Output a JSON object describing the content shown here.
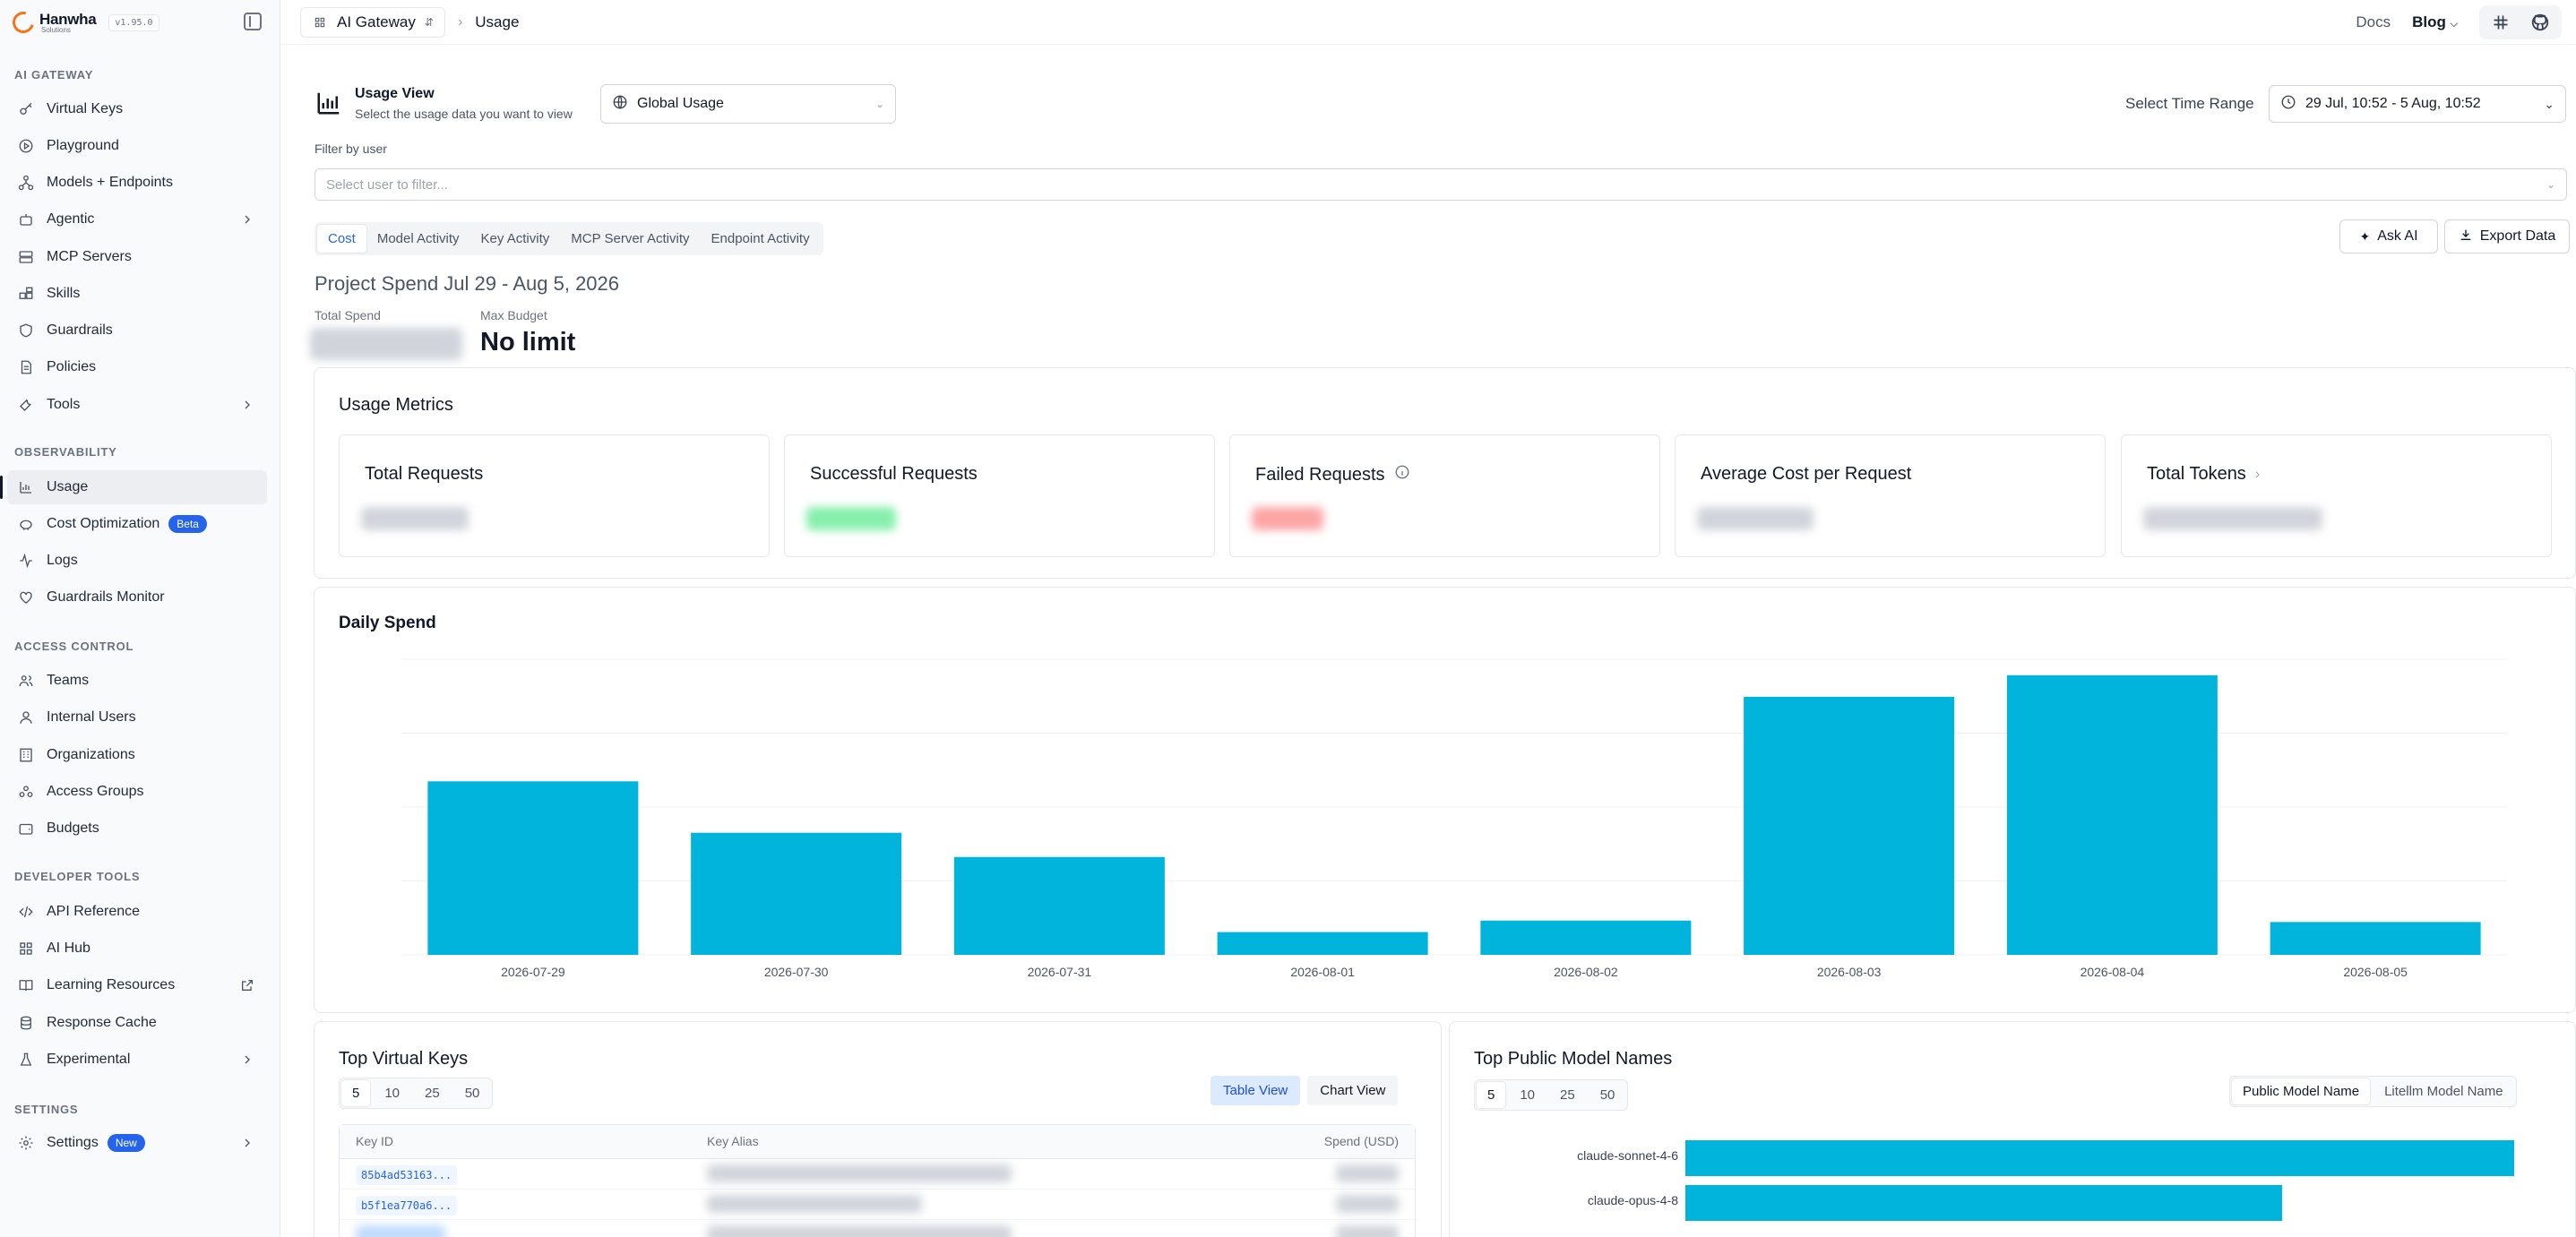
{
  "app": {
    "logo_name": "Hanwha",
    "logo_sub": "Solutions",
    "version": "v1.95.0"
  },
  "colors": {
    "accent": "#00b4db",
    "brand": "#f97316",
    "primary_blue": "#2563eb"
  },
  "sidebar": {
    "sections": [
      {
        "title": "AI GATEWAY"
      },
      {
        "title": "OBSERVABILITY"
      },
      {
        "title": "ACCESS CONTROL"
      },
      {
        "title": "DEVELOPER TOOLS"
      },
      {
        "title": "SETTINGS"
      }
    ],
    "items": [
      {
        "label": "Virtual Keys",
        "icon": "key-icon"
      },
      {
        "label": "Playground",
        "icon": "play-icon"
      },
      {
        "label": "Models + Endpoints",
        "icon": "network-icon"
      },
      {
        "label": "Agentic",
        "icon": "robot-icon"
      },
      {
        "label": "MCP Servers",
        "icon": "server-icon"
      },
      {
        "label": "Skills",
        "icon": "blocks-icon"
      },
      {
        "label": "Guardrails",
        "icon": "shield-icon"
      },
      {
        "label": "Policies",
        "icon": "document-icon"
      },
      {
        "label": "Tools",
        "icon": "wrench-icon"
      },
      {
        "label": "Usage",
        "icon": "bar-chart-icon"
      },
      {
        "label": "Cost Optimization",
        "icon": "piggy-icon",
        "badge": "Beta"
      },
      {
        "label": "Logs",
        "icon": "activity-icon"
      },
      {
        "label": "Guardrails Monitor",
        "icon": "heart-icon"
      },
      {
        "label": "Teams",
        "icon": "users-icon"
      },
      {
        "label": "Internal Users",
        "icon": "user-icon"
      },
      {
        "label": "Organizations",
        "icon": "building-icon"
      },
      {
        "label": "Access Groups",
        "icon": "group-icon"
      },
      {
        "label": "Budgets",
        "icon": "wallet-icon"
      },
      {
        "label": "API Reference",
        "icon": "code-icon"
      },
      {
        "label": "AI Hub",
        "icon": "grid-icon"
      },
      {
        "label": "Learning Resources",
        "icon": "book-icon"
      },
      {
        "label": "Response Cache",
        "icon": "database-icon"
      },
      {
        "label": "Experimental",
        "icon": "flask-icon"
      },
      {
        "label": "Settings",
        "icon": "gear-icon",
        "badge": "New"
      }
    ]
  },
  "topbar": {
    "workspace": "AI Gateway",
    "page": "Usage",
    "docs": "Docs",
    "blog": "Blog"
  },
  "usage_view": {
    "title": "Usage View",
    "subtitle": "Select the usage data you want to view",
    "selected": "Global Usage",
    "time_label": "Select Time Range",
    "time_value": "29 Jul, 10:52 - 5 Aug, 10:52",
    "filter_label": "Filter by user",
    "filter_placeholder": "Select user to filter..."
  },
  "tabs": [
    "Cost",
    "Model Activity",
    "Key Activity",
    "MCP Server Activity",
    "Endpoint Activity"
  ],
  "actions": {
    "ask_ai": "Ask AI",
    "export": "Export Data"
  },
  "spend": {
    "title": "Project Spend Jul 29 - Aug 5, 2026",
    "total_label": "Total Spend",
    "budget_label": "Max Budget",
    "budget_value": "No limit"
  },
  "metrics": {
    "title": "Usage Metrics",
    "cards": [
      "Total Requests",
      "Successful Requests",
      "Failed Requests",
      "Average Cost per Request",
      "Total Tokens"
    ]
  },
  "daily_spend": {
    "title": "Daily Spend"
  },
  "chart_data": {
    "type": "bar",
    "title": "Daily Spend",
    "categories": [
      "2026-07-29",
      "2026-07-30",
      "2026-07-31",
      "2026-08-01",
      "2026-08-02",
      "2026-08-03",
      "2026-08-04",
      "2026-08-05"
    ],
    "values": [
      0.587,
      0.413,
      0.331,
      0.077,
      0.116,
      0.873,
      0.946,
      0.111
    ],
    "ylim": [
      0,
      1
    ],
    "grid": true,
    "color": "#00b4db"
  },
  "top_keys": {
    "title": "Top Virtual Keys",
    "page_sizes": [
      "5",
      "10",
      "25",
      "50"
    ],
    "views": [
      "Table View",
      "Chart View"
    ],
    "columns": [
      "Key ID",
      "Key Alias",
      "Spend (USD)"
    ],
    "rows": [
      {
        "key_id": "85b4ad53163..."
      },
      {
        "key_id": "b5f1ea770a6..."
      }
    ]
  },
  "top_models": {
    "title": "Top Public Model Names",
    "page_sizes": [
      "5",
      "10",
      "25",
      "50"
    ],
    "views": [
      "Public Model Name",
      "Litellm Model Name"
    ],
    "bars": [
      {
        "name": "claude-sonnet-4-6",
        "value": 1.0
      },
      {
        "name": "claude-opus-4-8",
        "value": 0.72
      }
    ]
  }
}
